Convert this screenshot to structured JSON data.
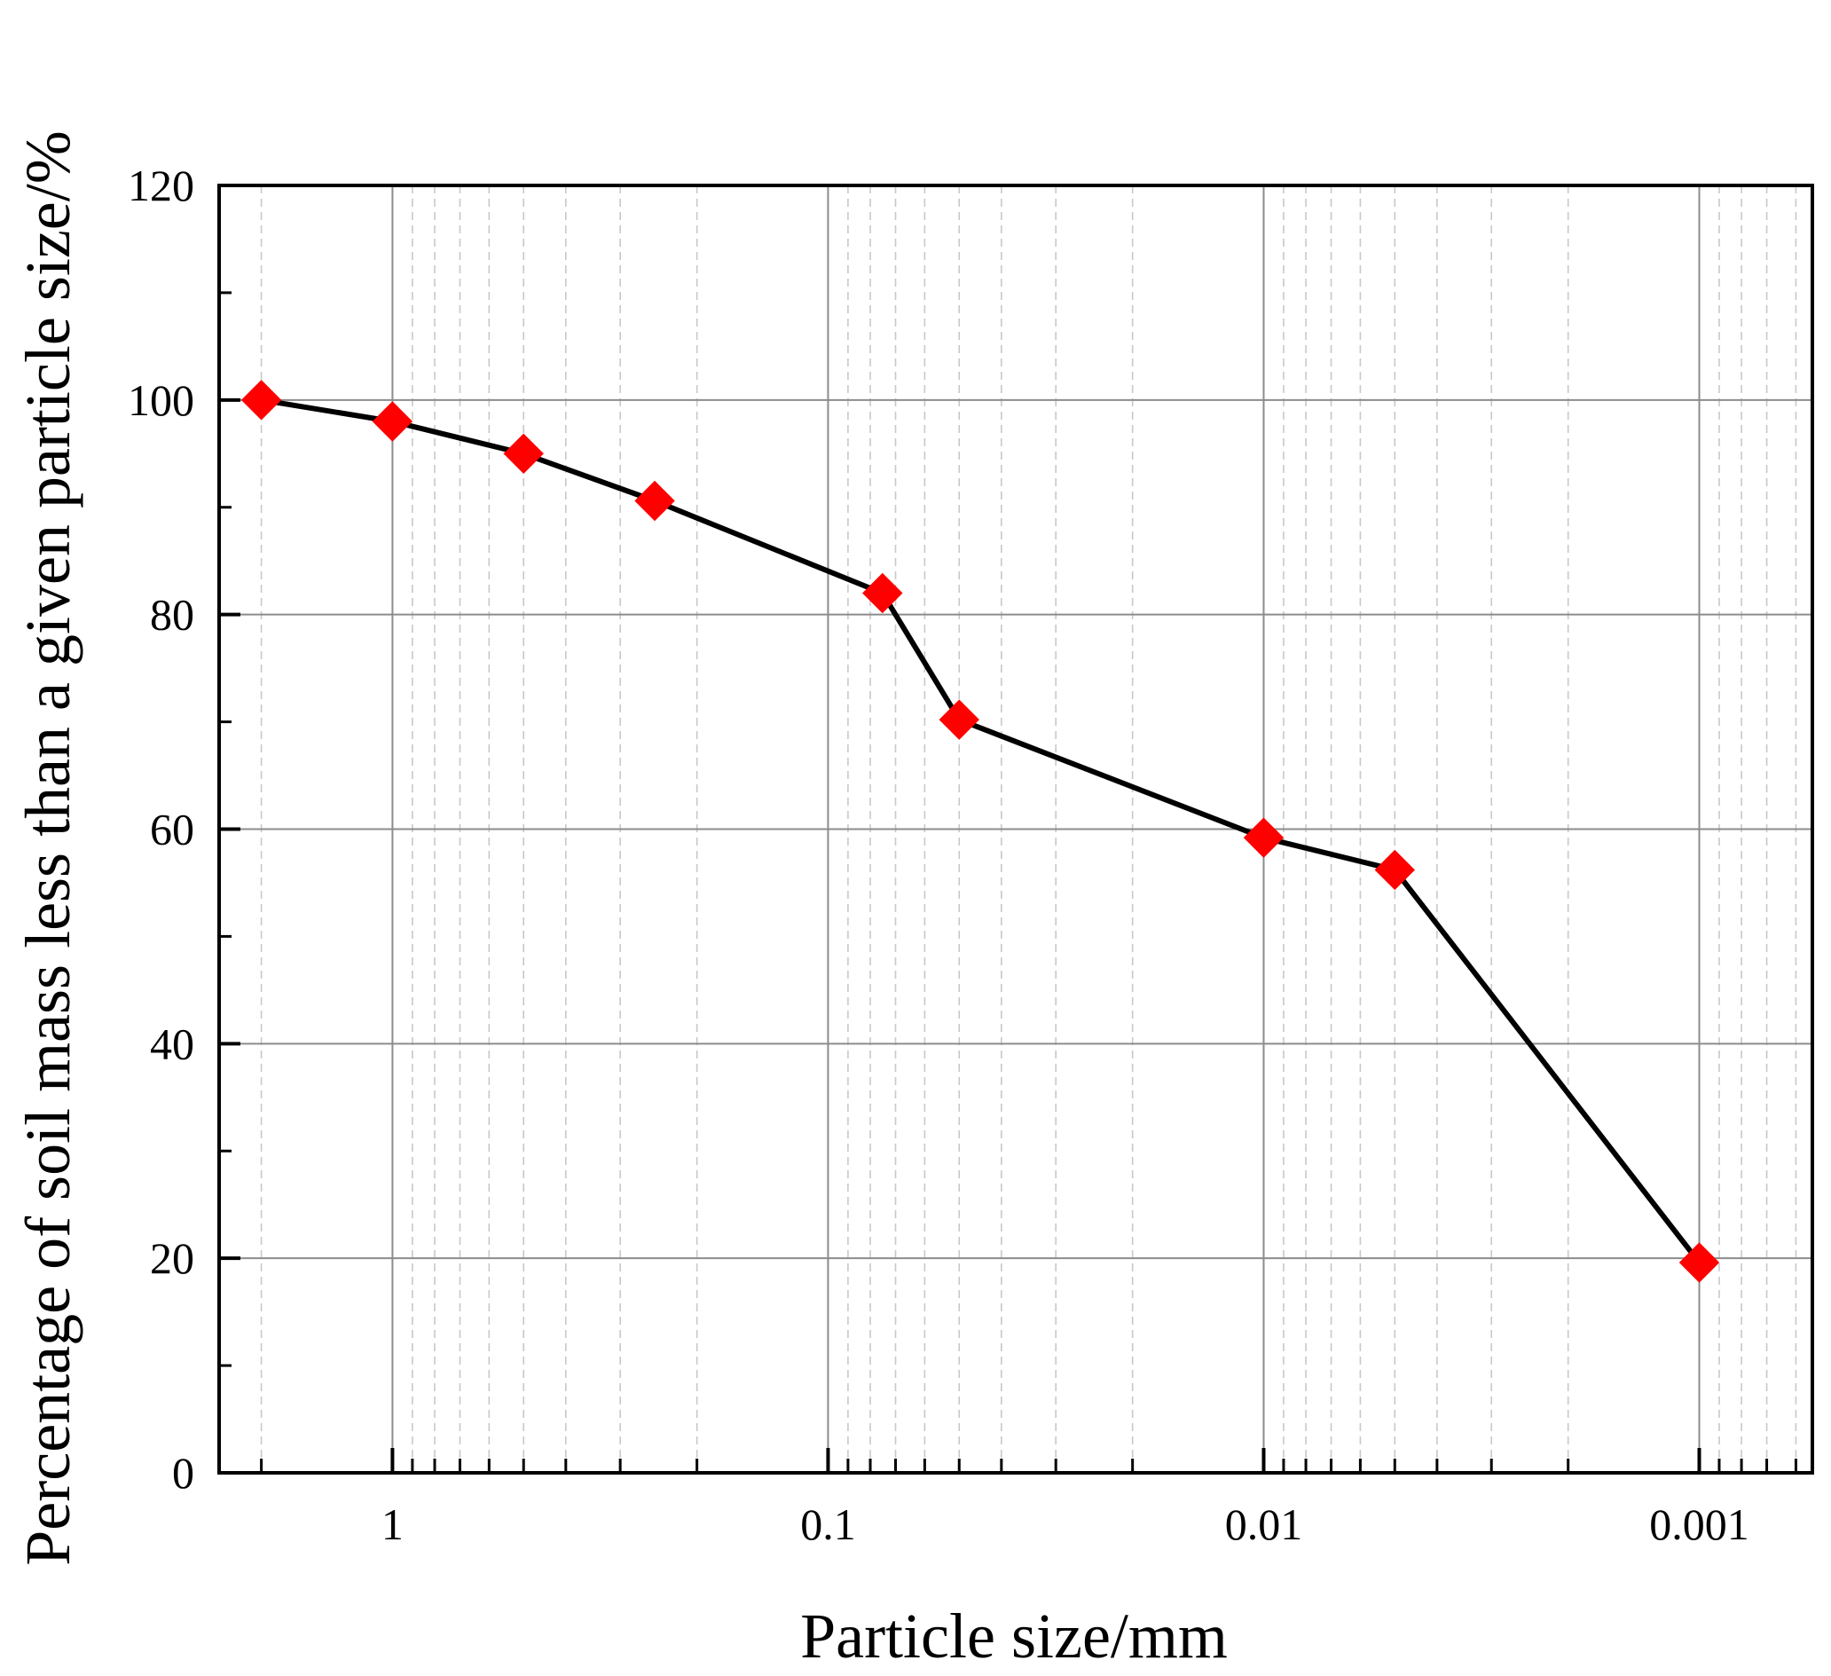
{
  "chart_data": {
    "type": "line",
    "xlabel": "Particle size/mm",
    "ylabel": "Percentage of soil mass less than a given particle size/%",
    "x_scale": "log",
    "x_reversed": true,
    "xlim": [
      2.5,
      0.00055
    ],
    "ylim": [
      0,
      120
    ],
    "x_ticks": [
      1,
      0.1,
      0.01,
      0.001
    ],
    "x_tick_labels": [
      "1",
      "0.1",
      "0.01",
      "0.001"
    ],
    "y_ticks": [
      0,
      20,
      40,
      60,
      80,
      100,
      120
    ],
    "y_tick_labels": [
      "0",
      "20",
      "40",
      "60",
      "80",
      "100",
      "120"
    ],
    "grid": true,
    "line_color": "#000000",
    "marker_color": "#ff0000",
    "marker": "diamond",
    "series": [
      {
        "x": [
          2,
          1,
          0.5,
          0.25,
          0.075,
          0.05,
          0.01,
          0.005,
          0.001
        ],
        "y": [
          100,
          98,
          95,
          90.6,
          82,
          70.2,
          59.2,
          56.2,
          19.6
        ]
      }
    ]
  }
}
